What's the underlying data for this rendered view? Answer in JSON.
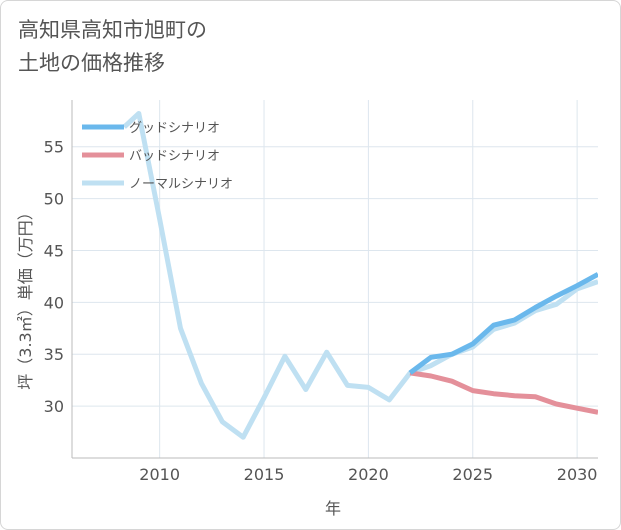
{
  "chart_data": {
    "type": "line",
    "title_lines": [
      "高知県高知市旭町の",
      "土地の価格推移"
    ],
    "xlabel": "年",
    "ylabel": "坪（3.3㎡）単価（万円）",
    "xlim": [
      2005.8,
      2031
    ],
    "ylim": [
      25,
      59.5
    ],
    "x_ticks": [
      2010,
      2015,
      2020,
      2025,
      2030
    ],
    "y_ticks": [
      30,
      35,
      40,
      45,
      50,
      55
    ],
    "grid": true,
    "legend_position": "top-left",
    "series": [
      {
        "name": "グッドシナリオ",
        "color": "#6ab8ec",
        "points": [
          [
            2022,
            33.2
          ],
          [
            2023,
            34.7
          ],
          [
            2024,
            35.0
          ],
          [
            2025,
            36.0
          ],
          [
            2026,
            37.8
          ],
          [
            2027,
            38.3
          ],
          [
            2028,
            39.5
          ],
          [
            2029,
            40.6
          ],
          [
            2030,
            41.6
          ],
          [
            2031,
            42.7
          ]
        ]
      },
      {
        "name": "バッドシナリオ",
        "color": "#e4909a",
        "points": [
          [
            2022,
            33.2
          ],
          [
            2023,
            32.9
          ],
          [
            2024,
            32.4
          ],
          [
            2025,
            31.5
          ],
          [
            2026,
            31.2
          ],
          [
            2027,
            31.0
          ],
          [
            2028,
            30.9
          ],
          [
            2029,
            30.2
          ],
          [
            2030,
            29.8
          ],
          [
            2031,
            29.4
          ]
        ]
      },
      {
        "name": "ノーマルシナリオ",
        "color": "#bfe0f2",
        "points": [
          [
            2008.3,
            56.9
          ],
          [
            2009,
            58.2
          ],
          [
            2010,
            48.0
          ],
          [
            2011,
            37.5
          ],
          [
            2012,
            32.2
          ],
          [
            2013,
            28.5
          ],
          [
            2014,
            27.0
          ],
          [
            2015,
            30.8
          ],
          [
            2016,
            34.8
          ],
          [
            2017,
            31.6
          ],
          [
            2018,
            35.2
          ],
          [
            2019,
            32.0
          ],
          [
            2020,
            31.8
          ],
          [
            2021,
            30.6
          ],
          [
            2022,
            33.2
          ],
          [
            2023,
            33.9
          ],
          [
            2024,
            35.0
          ],
          [
            2025,
            35.7
          ],
          [
            2026,
            37.4
          ],
          [
            2027,
            38.0
          ],
          [
            2028,
            39.2
          ],
          [
            2029,
            39.8
          ],
          [
            2030,
            41.3
          ],
          [
            2031,
            42.0
          ]
        ]
      }
    ]
  }
}
